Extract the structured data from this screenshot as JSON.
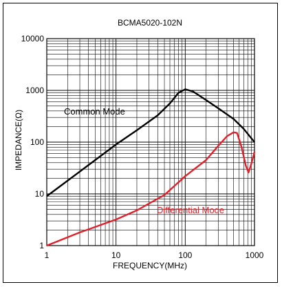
{
  "chart_data": {
    "type": "line",
    "title": "BCMA5020-102N",
    "xlabel": "FREQUENCY(MHz)",
    "ylabel": "IMPEDANCE(Ω)",
    "x_scale": "log",
    "y_scale": "log",
    "xlim": [
      1,
      1000
    ],
    "ylim": [
      1,
      10000
    ],
    "x_ticks": [
      {
        "value": 1,
        "label": "1"
      },
      {
        "value": 10,
        "label": "10"
      },
      {
        "value": 100,
        "label": "100"
      },
      {
        "value": 1000,
        "label": "1000"
      }
    ],
    "y_ticks": [
      {
        "value": 1,
        "label": "1"
      },
      {
        "value": 10,
        "label": "10"
      },
      {
        "value": 100,
        "label": "100"
      },
      {
        "value": 1000,
        "label": "1000"
      },
      {
        "value": 10000,
        "label": "10000"
      }
    ],
    "grid": true,
    "series": [
      {
        "name": "Common Mode",
        "color": "#000000",
        "points": [
          [
            1,
            9
          ],
          [
            2,
            18
          ],
          [
            5,
            45
          ],
          [
            10,
            90
          ],
          [
            20,
            170
          ],
          [
            40,
            330
          ],
          [
            60,
            560
          ],
          [
            80,
            900
          ],
          [
            100,
            1050
          ],
          [
            130,
            950
          ],
          [
            200,
            650
          ],
          [
            300,
            450
          ],
          [
            500,
            280
          ],
          [
            700,
            180
          ],
          [
            1000,
            100
          ]
        ]
      },
      {
        "name": "Differential Mode",
        "color": "#e0202a",
        "points": [
          [
            1,
            1
          ],
          [
            3,
            1.8
          ],
          [
            10,
            3.2
          ],
          [
            20,
            4.8
          ],
          [
            30,
            6.5
          ],
          [
            50,
            9.5
          ],
          [
            100,
            22
          ],
          [
            200,
            45
          ],
          [
            300,
            85
          ],
          [
            400,
            130
          ],
          [
            500,
            155
          ],
          [
            560,
            150
          ],
          [
            650,
            80
          ],
          [
            750,
            35
          ],
          [
            820,
            26
          ],
          [
            900,
            38
          ],
          [
            1000,
            65
          ]
        ]
      }
    ],
    "annotations": [
      {
        "text": "Common Mode",
        "color": "#000000"
      },
      {
        "text": "Differential Mode",
        "color": "#e0202a"
      }
    ]
  }
}
